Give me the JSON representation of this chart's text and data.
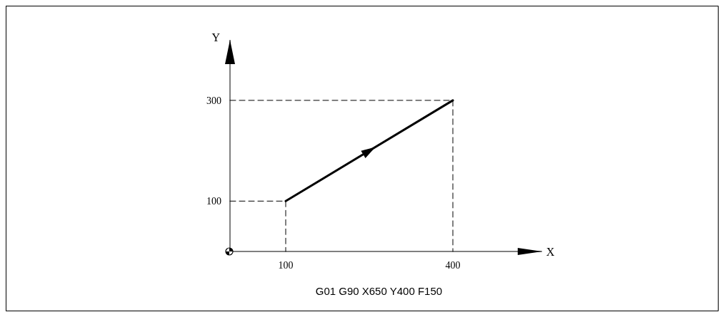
{
  "chart_data": {
    "type": "line",
    "xlabel": "X",
    "ylabel": "Y",
    "xlim": [
      0,
      560
    ],
    "ylim": [
      0,
      420
    ],
    "xticks": [
      100,
      400
    ],
    "yticks": [
      100,
      300
    ],
    "grid": false,
    "marker": "none",
    "series": [
      {
        "x": [
          0,
          100,
          100
        ],
        "values": [
          100,
          100,
          0
        ],
        "color": "#000000",
        "line_style": "dashed"
      },
      {
        "x": [
          0,
          400,
          400
        ],
        "values": [
          300,
          300,
          0
        ],
        "color": "#000000",
        "line_style": "dashed"
      },
      {
        "x": [
          100,
          400
        ],
        "values": [
          100,
          300
        ],
        "color": "#000000",
        "line_style": "solid"
      }
    ],
    "annotations": [
      "G01 G90 X650 Y400 F150"
    ]
  }
}
